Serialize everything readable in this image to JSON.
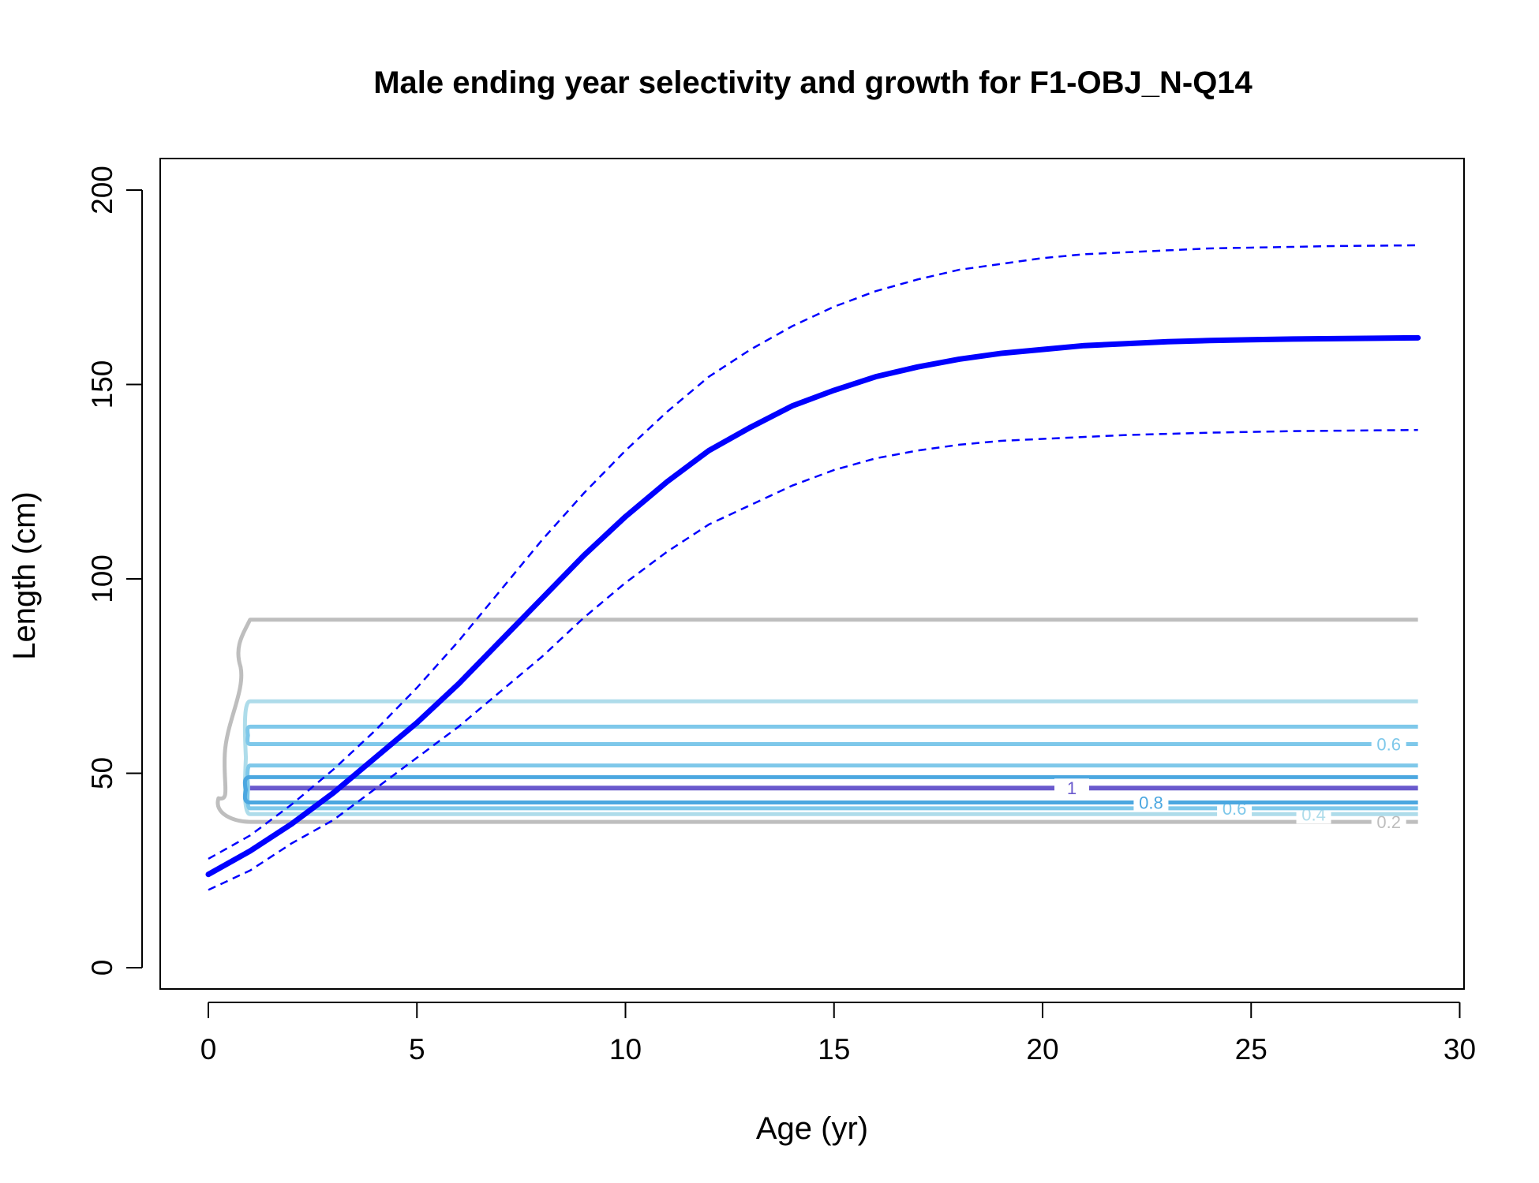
{
  "chart_data": {
    "type": "line",
    "title": "Male ending year selectivity and growth for F1-OBJ_N-Q14",
    "xlabel": "Age (yr)",
    "ylabel": "Length (cm)",
    "xlim": [
      0,
      30
    ],
    "ylim": [
      0,
      200
    ],
    "x_ticks": [
      0,
      5,
      10,
      15,
      20,
      25,
      30
    ],
    "y_ticks": [
      0,
      50,
      100,
      150,
      200
    ],
    "grid": false,
    "legend": "none",
    "growth": {
      "x": [
        0,
        1,
        2,
        3,
        4,
        5,
        6,
        7,
        8,
        9,
        10,
        11,
        12,
        13,
        14,
        15,
        16,
        17,
        18,
        19,
        20,
        21,
        22,
        23,
        24,
        25,
        26,
        27,
        28,
        29
      ],
      "mean": [
        24,
        30,
        37,
        45,
        54,
        63,
        73,
        84,
        95,
        106,
        116,
        125,
        133,
        139,
        144.5,
        148.5,
        152,
        154.5,
        156.5,
        158,
        159,
        160,
        160.5,
        161,
        161.3,
        161.5,
        161.7,
        161.8,
        161.9,
        162
      ],
      "upper": [
        28,
        34,
        42,
        51,
        61,
        72,
        84,
        97,
        110,
        122,
        133,
        143,
        152,
        159,
        165,
        170,
        174,
        177,
        179.5,
        181,
        182.5,
        183.5,
        184,
        184.5,
        185,
        185.2,
        185.4,
        185.6,
        185.7,
        185.8
      ],
      "lower": [
        20,
        25,
        32,
        38,
        46,
        54,
        62,
        71,
        80,
        90,
        99,
        107,
        114,
        119,
        124,
        128,
        131,
        133,
        134.5,
        135.5,
        136,
        136.5,
        137,
        137.3,
        137.6,
        137.8,
        138,
        138.1,
        138.2,
        138.3
      ],
      "mean_color": "#0000ff",
      "ci_color": "#0000ff"
    },
    "selectivity_contours": [
      {
        "level": 0.2,
        "label": "0.2",
        "color": "#bebebe",
        "label_x": 28.3,
        "top": 89.5,
        "bottom": 37.5
      },
      {
        "level": 0.4,
        "label": "0.4",
        "color": "#aedcea",
        "label_x": 26.5,
        "top": 68.5,
        "bottom": 39.5
      },
      {
        "level": 0.6,
        "label": "0.6",
        "color": "#7ec8ea",
        "label_x": 28.3,
        "top": 62,
        "bottom": 57.5
      },
      {
        "level": 0.6,
        "label": "0.6",
        "color": "#7ec8ea",
        "label_x": 24.6,
        "top": 52,
        "bottom": 41
      },
      {
        "level": 0.8,
        "label": "0.8",
        "color": "#4ba7e0",
        "label_x": 22.6,
        "top": 49,
        "bottom": 42.5
      },
      {
        "level": 1,
        "label": "1",
        "color": "#6a5acd",
        "label_x": 20.7,
        "top": 46.2,
        "bottom": 46.2
      }
    ]
  }
}
